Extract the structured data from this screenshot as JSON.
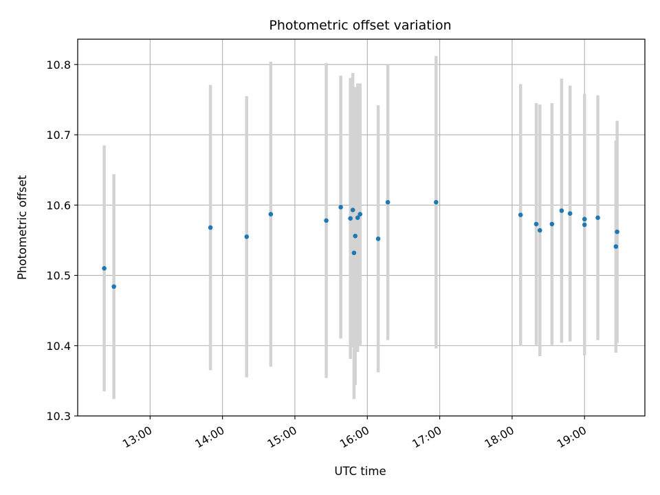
{
  "chart_data": {
    "type": "scatter",
    "title": "Photometric offset variation",
    "xlabel": "UTC time",
    "ylabel": "Photometric offset",
    "x_axis_type": "time",
    "xlim": [
      "12:00",
      "19:50"
    ],
    "ylim": [
      10.3,
      10.836
    ],
    "grid": true,
    "legend": "none",
    "colors": {
      "points": "#1f77b4",
      "errorbars": "#d3d3d3",
      "grid": "#b0b0b0"
    },
    "x_ticks": [
      "13:00",
      "14:00",
      "15:00",
      "16:00",
      "17:00",
      "18:00",
      "19:00"
    ],
    "y_ticks": [
      "10.3",
      "10.4",
      "10.5",
      "10.6",
      "10.7",
      "10.8"
    ],
    "points": [
      {
        "x": "12:22",
        "y": 10.51,
        "err": 0.175
      },
      {
        "x": "12:30",
        "y": 10.484,
        "err": 0.16
      },
      {
        "x": "13:50",
        "y": 10.568,
        "err": 0.203
      },
      {
        "x": "14:20",
        "y": 10.555,
        "err": 0.2
      },
      {
        "x": "14:40",
        "y": 10.587,
        "err": 0.217
      },
      {
        "x": "15:26",
        "y": 10.578,
        "err": 0.224
      },
      {
        "x": "15:38",
        "y": 10.597,
        "err": 0.187
      },
      {
        "x": "15:46",
        "y": 10.581,
        "err": 0.2
      },
      {
        "x": "15:48",
        "y": 10.593,
        "err": 0.195
      },
      {
        "x": "15:49",
        "y": 10.532,
        "err": 0.208
      },
      {
        "x": "15:50",
        "y": 10.556,
        "err": 0.212
      },
      {
        "x": "15:52",
        "y": 10.582,
        "err": 0.191
      },
      {
        "x": "15:54",
        "y": 10.587,
        "err": 0.186
      },
      {
        "x": "16:09",
        "y": 10.552,
        "err": 0.19
      },
      {
        "x": "16:17",
        "y": 10.604,
        "err": 0.196
      },
      {
        "x": "16:57",
        "y": 10.604,
        "err": 0.208
      },
      {
        "x": "18:07",
        "y": 10.586,
        "err": 0.186
      },
      {
        "x": "18:20",
        "y": 10.573,
        "err": 0.172
      },
      {
        "x": "18:23",
        "y": 10.564,
        "err": 0.179
      },
      {
        "x": "18:33",
        "y": 10.573,
        "err": 0.172
      },
      {
        "x": "18:41",
        "y": 10.592,
        "err": 0.188
      },
      {
        "x": "18:48",
        "y": 10.588,
        "err": 0.182
      },
      {
        "x": "19:00",
        "y": 10.58,
        "err": 0.178
      },
      {
        "x": "19:00",
        "y": 10.572,
        "err": 0.186
      },
      {
        "x": "19:11",
        "y": 10.582,
        "err": 0.174
      },
      {
        "x": "19:26",
        "y": 10.541,
        "err": 0.151
      },
      {
        "x": "19:27",
        "y": 10.562,
        "err": 0.158
      }
    ]
  }
}
